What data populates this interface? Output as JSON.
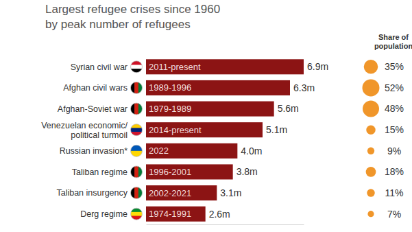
{
  "chart_data": {
    "type": "bar",
    "title": "Largest refugee crises since 1960",
    "subtitle": "by peak number of refugees",
    "orientation": "horizontal",
    "categories": [
      "Syrian civil war",
      "Afghan civil wars",
      "Afghan-Soviet war",
      "Venezuelan economic/ political turmoil",
      "Russian invasion*",
      "Taliban regime",
      "Taliban insurgency",
      "Derg regime"
    ],
    "periods": [
      "2011-present",
      "1989-1996",
      "1979-1989",
      "2014-present",
      "2022",
      "1996-2001",
      "2002-2021",
      "1974-1991"
    ],
    "values": [
      6.9,
      6.3,
      5.6,
      5.1,
      4.0,
      3.8,
      3.1,
      2.6
    ],
    "value_labels": [
      "6.9m",
      "6.3m",
      "5.6m",
      "5.1m",
      "4.0m",
      "3.8m",
      "3.1m",
      "2.6m"
    ],
    "data_labels": true,
    "color": "#8c1414",
    "xlim": [
      0,
      6.9
    ],
    "tick_labels": false,
    "share_of_population": {
      "title": "Share of population",
      "values": [
        35,
        52,
        48,
        15,
        9,
        18,
        11,
        7
      ],
      "value_labels": [
        "35%",
        "52%",
        "48%",
        "15%",
        "9%",
        "18%",
        "11%",
        "7%"
      ],
      "color": "#f0962a"
    }
  }
}
